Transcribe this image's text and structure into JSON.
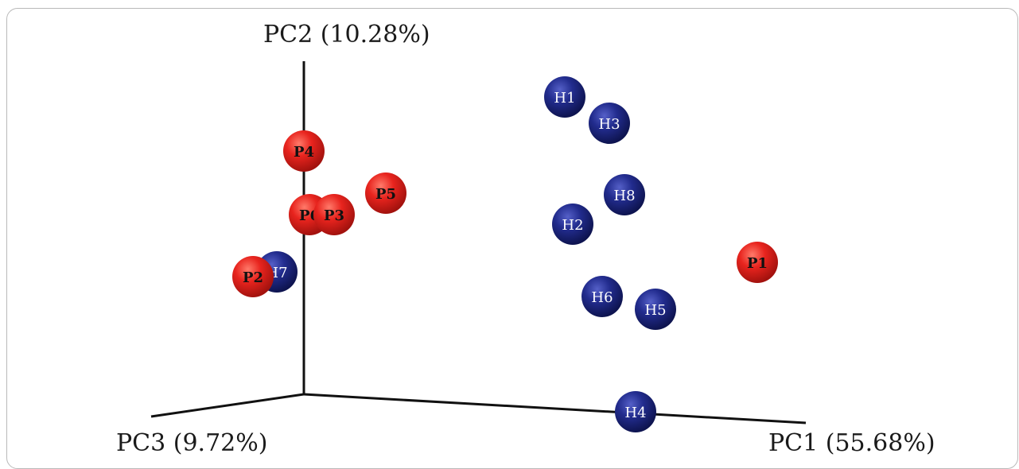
{
  "chart_data": {
    "type": "scatter",
    "projection": "3d",
    "axes": {
      "pc1": {
        "label": "PC1 (55.68%)"
      },
      "pc2": {
        "label": "PC2 (10.28%)"
      },
      "pc3": {
        "label": "PC3 (9.72%)"
      }
    },
    "legend": "none",
    "grid": false,
    "colors": {
      "patient": "#e0201c",
      "healthy": "#1f2a8a",
      "axis": "#111111"
    },
    "groups": {
      "patient": {
        "label_color": "#111111",
        "label_bold": true
      },
      "healthy": {
        "label_color": "#ffffff",
        "label_bold": false
      }
    },
    "points": [
      {
        "label": "H7",
        "group": "healthy"
      },
      {
        "label": "P2",
        "group": "patient"
      },
      {
        "label": "P4",
        "group": "patient"
      },
      {
        "label": "P6",
        "group": "patient"
      },
      {
        "label": "P3",
        "group": "patient"
      },
      {
        "label": "P5",
        "group": "patient"
      },
      {
        "label": "H1",
        "group": "healthy"
      },
      {
        "label": "H3",
        "group": "healthy"
      },
      {
        "label": "H8",
        "group": "healthy"
      },
      {
        "label": "H2",
        "group": "healthy"
      },
      {
        "label": "P1",
        "group": "patient"
      },
      {
        "label": "H6",
        "group": "healthy"
      },
      {
        "label": "H5",
        "group": "healthy"
      },
      {
        "label": "H4",
        "group": "healthy"
      }
    ]
  }
}
